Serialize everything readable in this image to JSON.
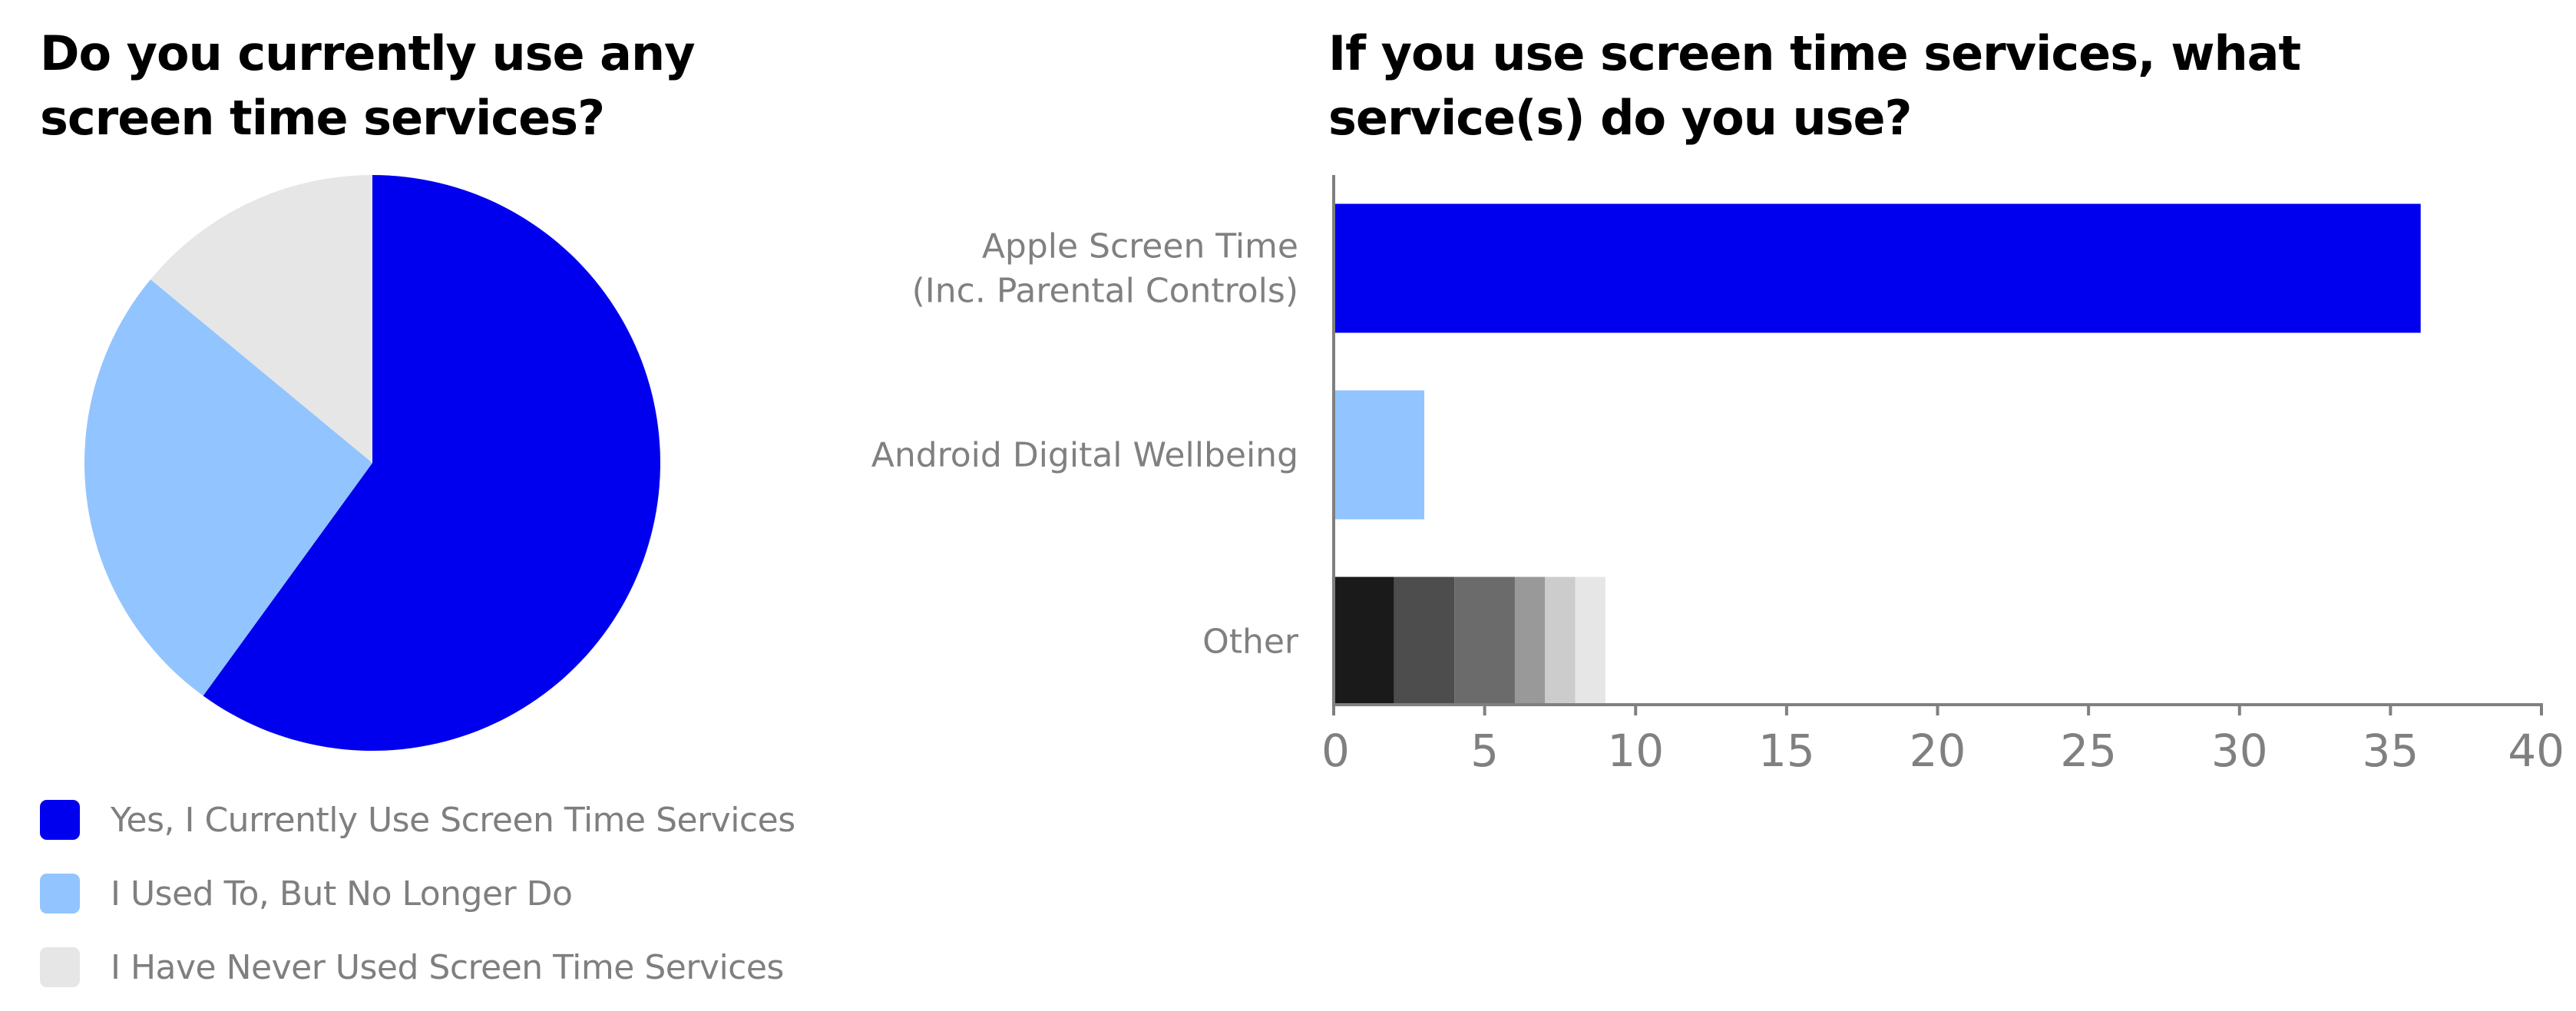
{
  "chart_data": [
    {
      "type": "pie",
      "title": "Do you currently use any screen time services?",
      "series": [
        {
          "name": "Yes, I Currently Use Screen Time Services",
          "value": 60,
          "color": "#0000ee"
        },
        {
          "name": "I Used To, But No Longer Do",
          "value": 26,
          "color": "#92c4ff"
        },
        {
          "name": "I Have Never Used Screen Time Services",
          "value": 14,
          "color": "#e6e6e6"
        }
      ],
      "start_angle": "12 o'clock, clockwise",
      "legend": "bottom-left"
    },
    {
      "type": "bar",
      "orientation": "horizontal",
      "stacked": true,
      "title": "If you use screen time services, what service(s) do you use?",
      "categories": [
        {
          "label_lines": [
            "Apple Screen Time",
            "(Inc. Parental Controls)"
          ]
        },
        {
          "label_lines": [
            "Android Digital Wellbeing"
          ]
        },
        {
          "label_lines": [
            "Other"
          ]
        }
      ],
      "bars": [
        [
          {
            "value": 36,
            "color": "#0000ee"
          }
        ],
        [
          {
            "value": 3,
            "color": "#92c4ff"
          }
        ],
        [
          {
            "value": 2,
            "color": "#1a1a1a"
          },
          {
            "value": 2,
            "color": "#4d4d4d"
          },
          {
            "value": 2,
            "color": "#6b6b6b"
          },
          {
            "value": 1,
            "color": "#999999"
          },
          {
            "value": 1,
            "color": "#cccccc"
          },
          {
            "value": 1,
            "color": "#e6e6e6"
          }
        ]
      ],
      "xlim": [
        0,
        40
      ],
      "xticks": [
        0,
        5,
        10,
        15,
        20,
        25,
        30,
        35,
        40
      ],
      "grid": false,
      "axis_color": "#808080"
    }
  ]
}
